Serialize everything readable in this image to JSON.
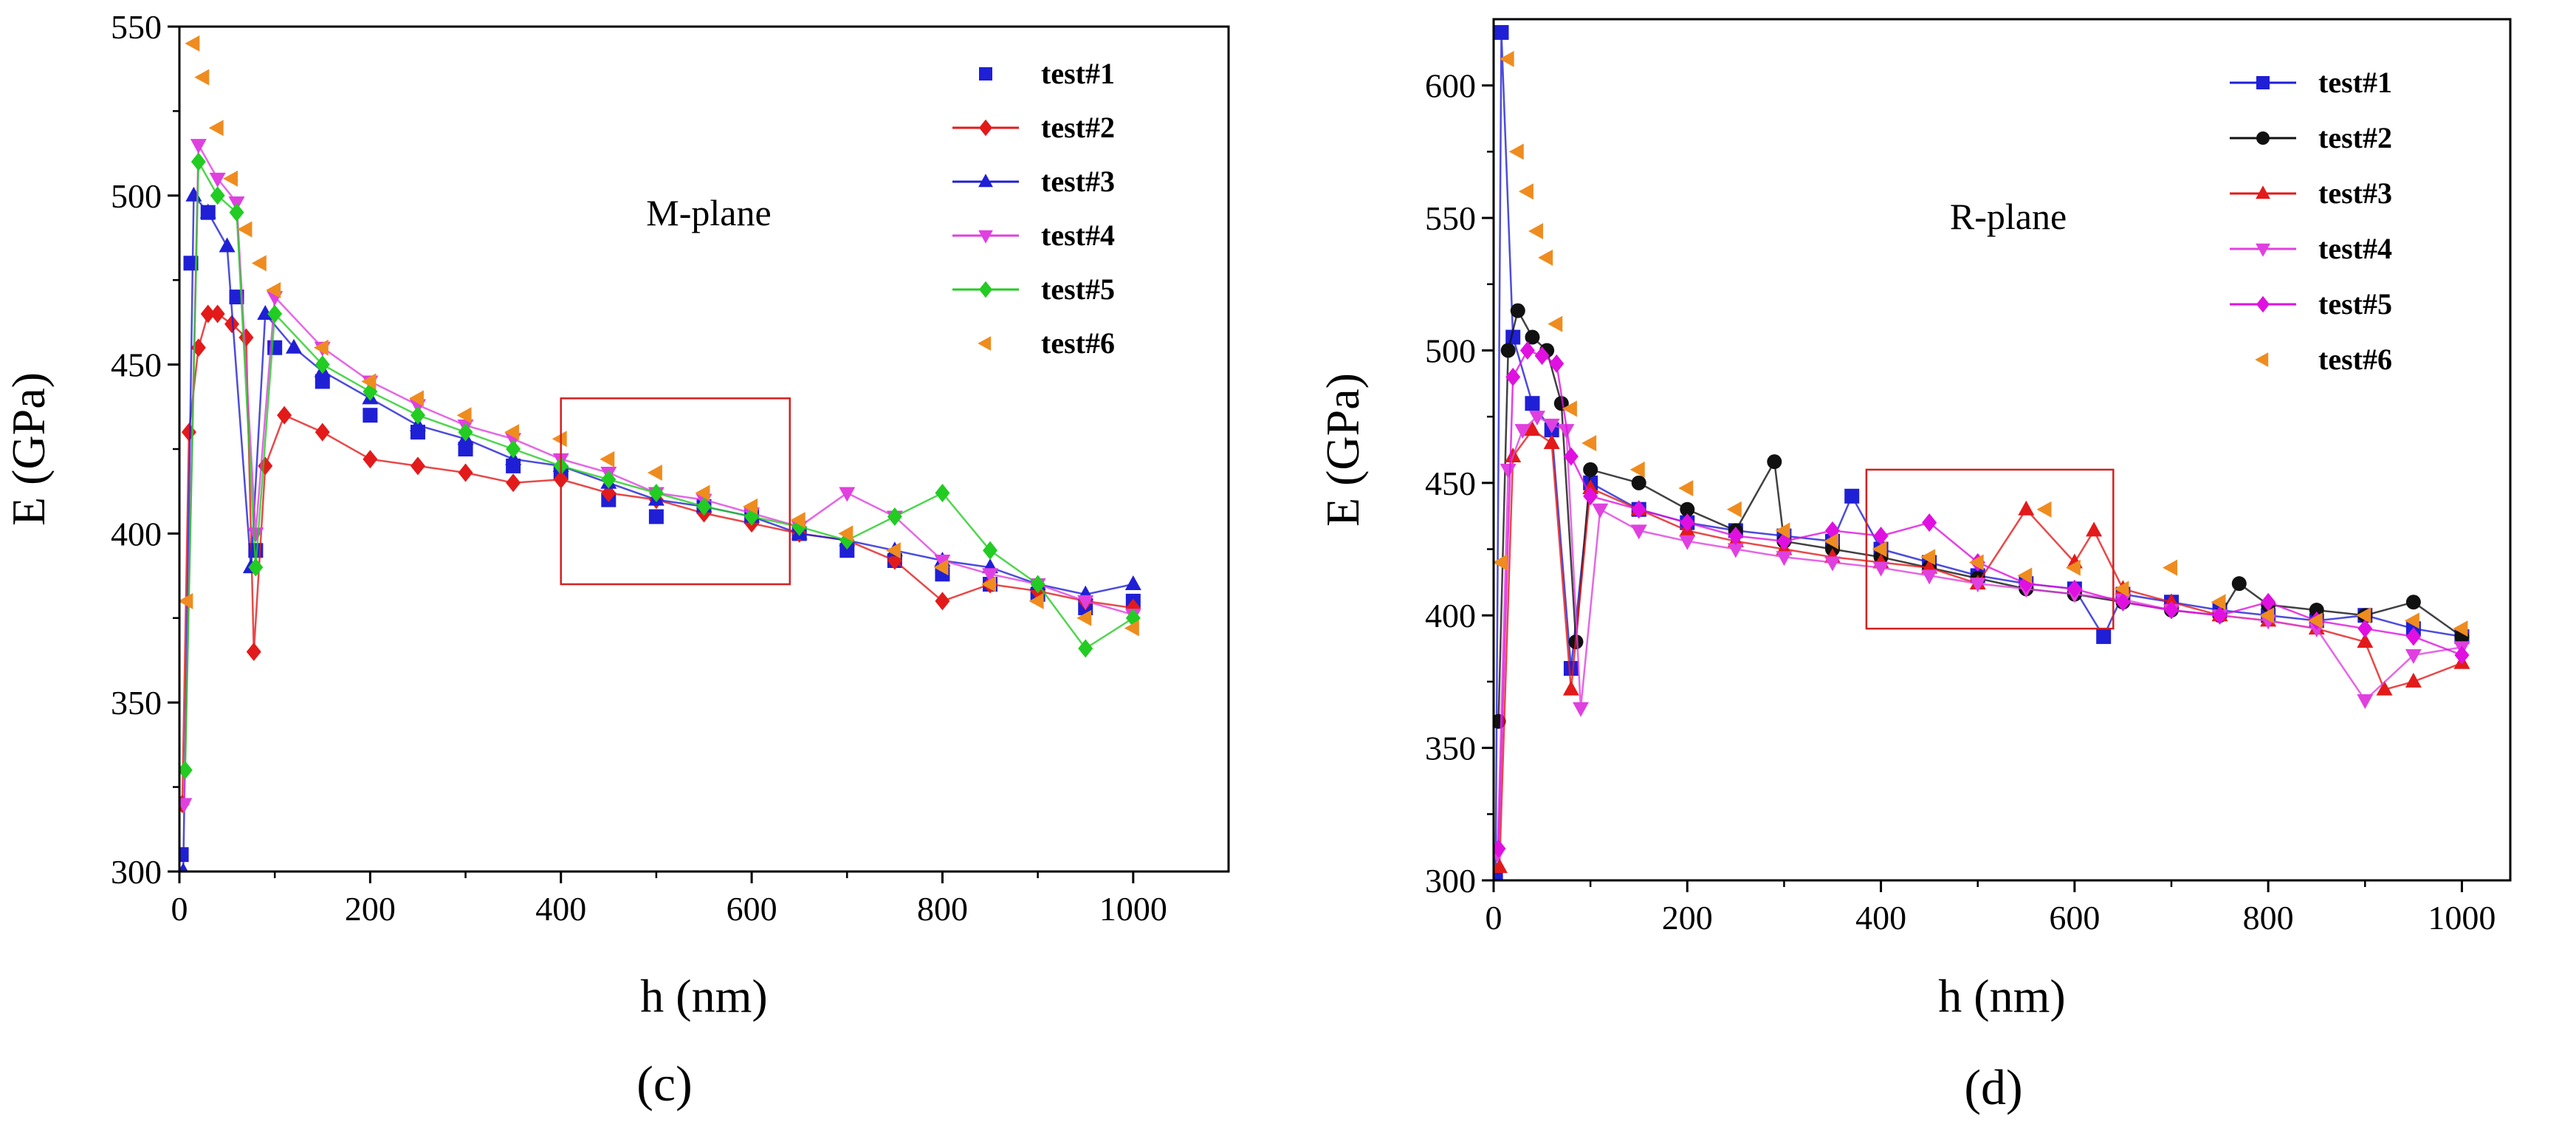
{
  "chart_data": [
    {
      "type": "scatter",
      "panel_label": "(c)",
      "annotation": "M-plane",
      "xlabel": "h (nm)",
      "ylabel": "E (GPa)",
      "xlim": [
        0,
        1100
      ],
      "ylim": [
        300,
        550
      ],
      "xticks": [
        0,
        200,
        400,
        600,
        800,
        1000
      ],
      "yticks": [
        300,
        350,
        400,
        450,
        500,
        550
      ],
      "highlight_box": {
        "x": [
          400,
          640
        ],
        "y": [
          385,
          440
        ]
      },
      "legend_position": "top-right",
      "series": [
        {
          "name": "test#1",
          "color": "#1f1fd6",
          "marker": "square",
          "line": false,
          "x": [
            2,
            12,
            30,
            60,
            80,
            100,
            150,
            200,
            250,
            300,
            350,
            400,
            450,
            500,
            550,
            600,
            650,
            700,
            750,
            800,
            850,
            900,
            950,
            1000
          ],
          "y": [
            305,
            480,
            495,
            470,
            395,
            455,
            445,
            435,
            430,
            425,
            420,
            418,
            410,
            405,
            408,
            405,
            400,
            395,
            392,
            388,
            385,
            382,
            378,
            380
          ]
        },
        {
          "name": "test#2",
          "color": "#e31a1a",
          "marker": "diamond",
          "line": true,
          "x": [
            3,
            10,
            20,
            30,
            40,
            55,
            70,
            78,
            90,
            110,
            150,
            200,
            250,
            300,
            350,
            400,
            450,
            500,
            550,
            600,
            650,
            700,
            750,
            800,
            850,
            900,
            950,
            1000
          ],
          "y": [
            320,
            430,
            455,
            465,
            465,
            462,
            458,
            365,
            420,
            435,
            430,
            422,
            420,
            418,
            415,
            416,
            412,
            410,
            406,
            403,
            400,
            398,
            392,
            380,
            385,
            383,
            380,
            378
          ]
        },
        {
          "name": "test#3",
          "color": "#1f1fd6",
          "marker": "triangle-up",
          "line": true,
          "x": [
            4,
            15,
            30,
            50,
            75,
            90,
            120,
            150,
            200,
            250,
            300,
            350,
            400,
            450,
            500,
            550,
            600,
            650,
            700,
            750,
            800,
            850,
            900,
            950,
            1000
          ],
          "y": [
            300,
            500,
            495,
            485,
            390,
            465,
            455,
            448,
            440,
            432,
            428,
            422,
            420,
            415,
            410,
            408,
            405,
            400,
            398,
            395,
            392,
            390,
            385,
            382,
            385
          ]
        },
        {
          "name": "test#4",
          "color": "#e040e0",
          "marker": "triangle-down",
          "line": true,
          "x": [
            5,
            20,
            40,
            60,
            80,
            100,
            150,
            200,
            250,
            300,
            350,
            400,
            450,
            500,
            550,
            600,
            650,
            700,
            750,
            800,
            850,
            900,
            950,
            1000
          ],
          "y": [
            320,
            515,
            505,
            498,
            400,
            470,
            455,
            445,
            438,
            432,
            428,
            422,
            418,
            412,
            410,
            406,
            402,
            412,
            405,
            392,
            388,
            385,
            380,
            376
          ]
        },
        {
          "name": "test#5",
          "color": "#22cc22",
          "marker": "diamond",
          "line": true,
          "x": [
            6,
            20,
            40,
            60,
            80,
            100,
            150,
            200,
            250,
            300,
            350,
            400,
            450,
            500,
            550,
            600,
            650,
            700,
            750,
            800,
            850,
            900,
            950,
            1000
          ],
          "y": [
            330,
            510,
            500,
            495,
            390,
            465,
            450,
            442,
            435,
            430,
            425,
            420,
            416,
            412,
            408,
            405,
            402,
            398,
            405,
            412,
            395,
            385,
            366,
            375
          ]
        },
        {
          "name": "test#6",
          "color": "#ef8c1f",
          "marker": "triangle-left",
          "line": false,
          "x": [
            8,
            15,
            25,
            40,
            55,
            70,
            85,
            100,
            150,
            200,
            250,
            300,
            350,
            400,
            450,
            500,
            550,
            600,
            650,
            700,
            750,
            800,
            850,
            900,
            950,
            1000
          ],
          "y": [
            380,
            545,
            535,
            520,
            505,
            490,
            480,
            472,
            455,
            445,
            440,
            435,
            430,
            428,
            422,
            418,
            412,
            408,
            404,
            400,
            395,
            390,
            385,
            380,
            375,
            372
          ]
        }
      ]
    },
    {
      "type": "scatter",
      "panel_label": "(d)",
      "annotation": "R-plane",
      "xlabel": "h (nm)",
      "ylabel": "E (GPa)",
      "xlim": [
        0,
        1050
      ],
      "ylim": [
        300,
        625
      ],
      "xticks": [
        0,
        200,
        400,
        600,
        800,
        1000
      ],
      "yticks": [
        300,
        350,
        400,
        450,
        500,
        550,
        600
      ],
      "highlight_box": {
        "x": [
          385,
          640
        ],
        "y": [
          395,
          455
        ]
      },
      "legend_position": "top-right",
      "series": [
        {
          "name": "test#1",
          "color": "#1f1fd6",
          "marker": "square",
          "line": true,
          "x": [
            2,
            8,
            20,
            40,
            60,
            80,
            100,
            150,
            200,
            250,
            300,
            350,
            370,
            400,
            450,
            500,
            550,
            600,
            630,
            650,
            700,
            750,
            800,
            850,
            900,
            950,
            1000
          ],
          "y": [
            300,
            620,
            505,
            480,
            470,
            380,
            450,
            440,
            435,
            432,
            430,
            428,
            445,
            425,
            420,
            415,
            412,
            410,
            392,
            408,
            405,
            402,
            400,
            398,
            400,
            395,
            392
          ]
        },
        {
          "name": "test#2",
          "color": "#111111",
          "marker": "circle",
          "line": true,
          "x": [
            5,
            15,
            25,
            40,
            55,
            70,
            85,
            100,
            150,
            200,
            250,
            290,
            300,
            350,
            400,
            450,
            500,
            550,
            600,
            650,
            700,
            750,
            770,
            800,
            850,
            900,
            950,
            1000
          ],
          "y": [
            360,
            500,
            515,
            505,
            500,
            480,
            390,
            455,
            450,
            440,
            432,
            458,
            428,
            425,
            422,
            418,
            414,
            410,
            408,
            405,
            402,
            400,
            412,
            404,
            402,
            400,
            405,
            392
          ]
        },
        {
          "name": "test#3",
          "color": "#e31a1a",
          "marker": "triangle-up",
          "line": true,
          "x": [
            6,
            20,
            40,
            60,
            80,
            100,
            150,
            200,
            250,
            300,
            350,
            400,
            450,
            500,
            550,
            600,
            620,
            650,
            700,
            750,
            800,
            850,
            900,
            920,
            950,
            1000
          ],
          "y": [
            305,
            460,
            470,
            465,
            372,
            448,
            440,
            432,
            428,
            425,
            422,
            420,
            418,
            412,
            440,
            420,
            432,
            410,
            405,
            400,
            398,
            395,
            390,
            372,
            375,
            382
          ]
        },
        {
          "name": "test#4",
          "color": "#e040e0",
          "marker": "triangle-down",
          "line": true,
          "x": [
            4,
            15,
            30,
            45,
            60,
            75,
            90,
            110,
            150,
            200,
            250,
            300,
            350,
            400,
            450,
            500,
            550,
            600,
            650,
            700,
            750,
            800,
            850,
            900,
            950,
            1000
          ],
          "y": [
            310,
            455,
            470,
            475,
            472,
            470,
            365,
            440,
            432,
            428,
            425,
            422,
            420,
            418,
            415,
            412,
            410,
            408,
            406,
            402,
            400,
            398,
            395,
            368,
            385,
            388
          ]
        },
        {
          "name": "test#5",
          "color": "#e010e0",
          "marker": "diamond",
          "line": true,
          "x": [
            5,
            20,
            35,
            50,
            65,
            80,
            100,
            150,
            200,
            250,
            300,
            350,
            400,
            450,
            500,
            550,
            600,
            650,
            700,
            750,
            800,
            850,
            900,
            950,
            1000
          ],
          "y": [
            312,
            490,
            500,
            498,
            495,
            460,
            445,
            440,
            435,
            430,
            428,
            432,
            430,
            435,
            420,
            412,
            410,
            405,
            402,
            400,
            405,
            398,
            395,
            392,
            385
          ]
        },
        {
          "name": "test#6",
          "color": "#ef8c1f",
          "marker": "triangle-left",
          "line": false,
          "x": [
            8,
            15,
            25,
            35,
            45,
            55,
            65,
            80,
            100,
            150,
            200,
            250,
            300,
            350,
            400,
            450,
            500,
            550,
            570,
            600,
            650,
            700,
            750,
            800,
            850,
            900,
            950,
            1000
          ],
          "y": [
            420,
            610,
            575,
            560,
            545,
            535,
            510,
            478,
            465,
            455,
            448,
            440,
            432,
            428,
            425,
            422,
            420,
            415,
            440,
            418,
            410,
            418,
            405,
            400,
            398,
            400,
            398,
            395
          ]
        }
      ]
    }
  ]
}
